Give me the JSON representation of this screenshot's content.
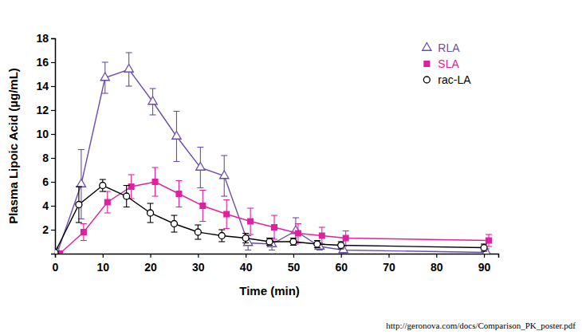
{
  "chart_data": {
    "type": "line",
    "x_label": "Time (min)",
    "y_label": "Plasma Lipoic Acid (µg/mL)",
    "source": "http://geronova.com/docs/Comparison_PK_poster.pdf",
    "xlim": [
      0,
      93
    ],
    "xticks": [
      0,
      10,
      20,
      30,
      40,
      50,
      60,
      70,
      80,
      90
    ],
    "ylim": [
      0,
      18
    ],
    "yticks": [
      2,
      4,
      6,
      8,
      10,
      12,
      14,
      16,
      18
    ],
    "grid": false,
    "legend": "upper right",
    "series": [
      {
        "name": "RLA",
        "color": "#6b4ea8",
        "marker": "triangle-open",
        "line_style": "solid",
        "x": [
          0.5,
          5.5,
          10.5,
          15.5,
          20.5,
          25.5,
          30.5,
          35.5,
          40.5,
          45.5,
          50.5,
          55.5,
          60.5,
          90.5
        ],
        "values": [
          0.1,
          5.8,
          14.7,
          15.4,
          12.7,
          9.8,
          7.2,
          6.5,
          0.9,
          0.8,
          1.9,
          0.6,
          0.3,
          0.1
        ],
        "errors": [
          0.1,
          2.9,
          1.3,
          1.4,
          1.1,
          2.1,
          1.7,
          1.7,
          0.6,
          0.5,
          1.1,
          0.3,
          0.3,
          0.3
        ]
      },
      {
        "name": "SLA",
        "color": "#e020a0",
        "marker": "square",
        "line_style": "solid",
        "x": [
          1,
          6,
          11,
          16,
          21,
          26,
          31,
          36,
          41,
          46,
          51,
          56,
          61,
          91
        ],
        "values": [
          0,
          1.8,
          4.3,
          5.6,
          6.0,
          5.0,
          4.0,
          3.3,
          2.7,
          2.2,
          1.7,
          1.5,
          1.3,
          1.1
        ],
        "errors": [
          0,
          0.7,
          0.9,
          1.0,
          1.2,
          1.1,
          1.3,
          1.2,
          1.1,
          1.0,
          0.8,
          0.7,
          0.6,
          0.5
        ]
      },
      {
        "name": "rac-LA",
        "color": "#000000",
        "marker": "circle-open",
        "line_style": "solid",
        "x": [
          0,
          5,
          10,
          15,
          20,
          25,
          30,
          35,
          40,
          45,
          50,
          55,
          60,
          90
        ],
        "values": [
          0.1,
          4.1,
          5.7,
          4.8,
          3.4,
          2.5,
          1.8,
          1.5,
          1.3,
          1.0,
          1.0,
          0.8,
          0.7,
          0.5
        ],
        "errors": [
          0.1,
          1.5,
          0.5,
          0.9,
          0.8,
          0.7,
          0.6,
          0.5,
          0.4,
          0.3,
          0.3,
          0.3,
          0.3,
          0.3
        ]
      }
    ]
  }
}
